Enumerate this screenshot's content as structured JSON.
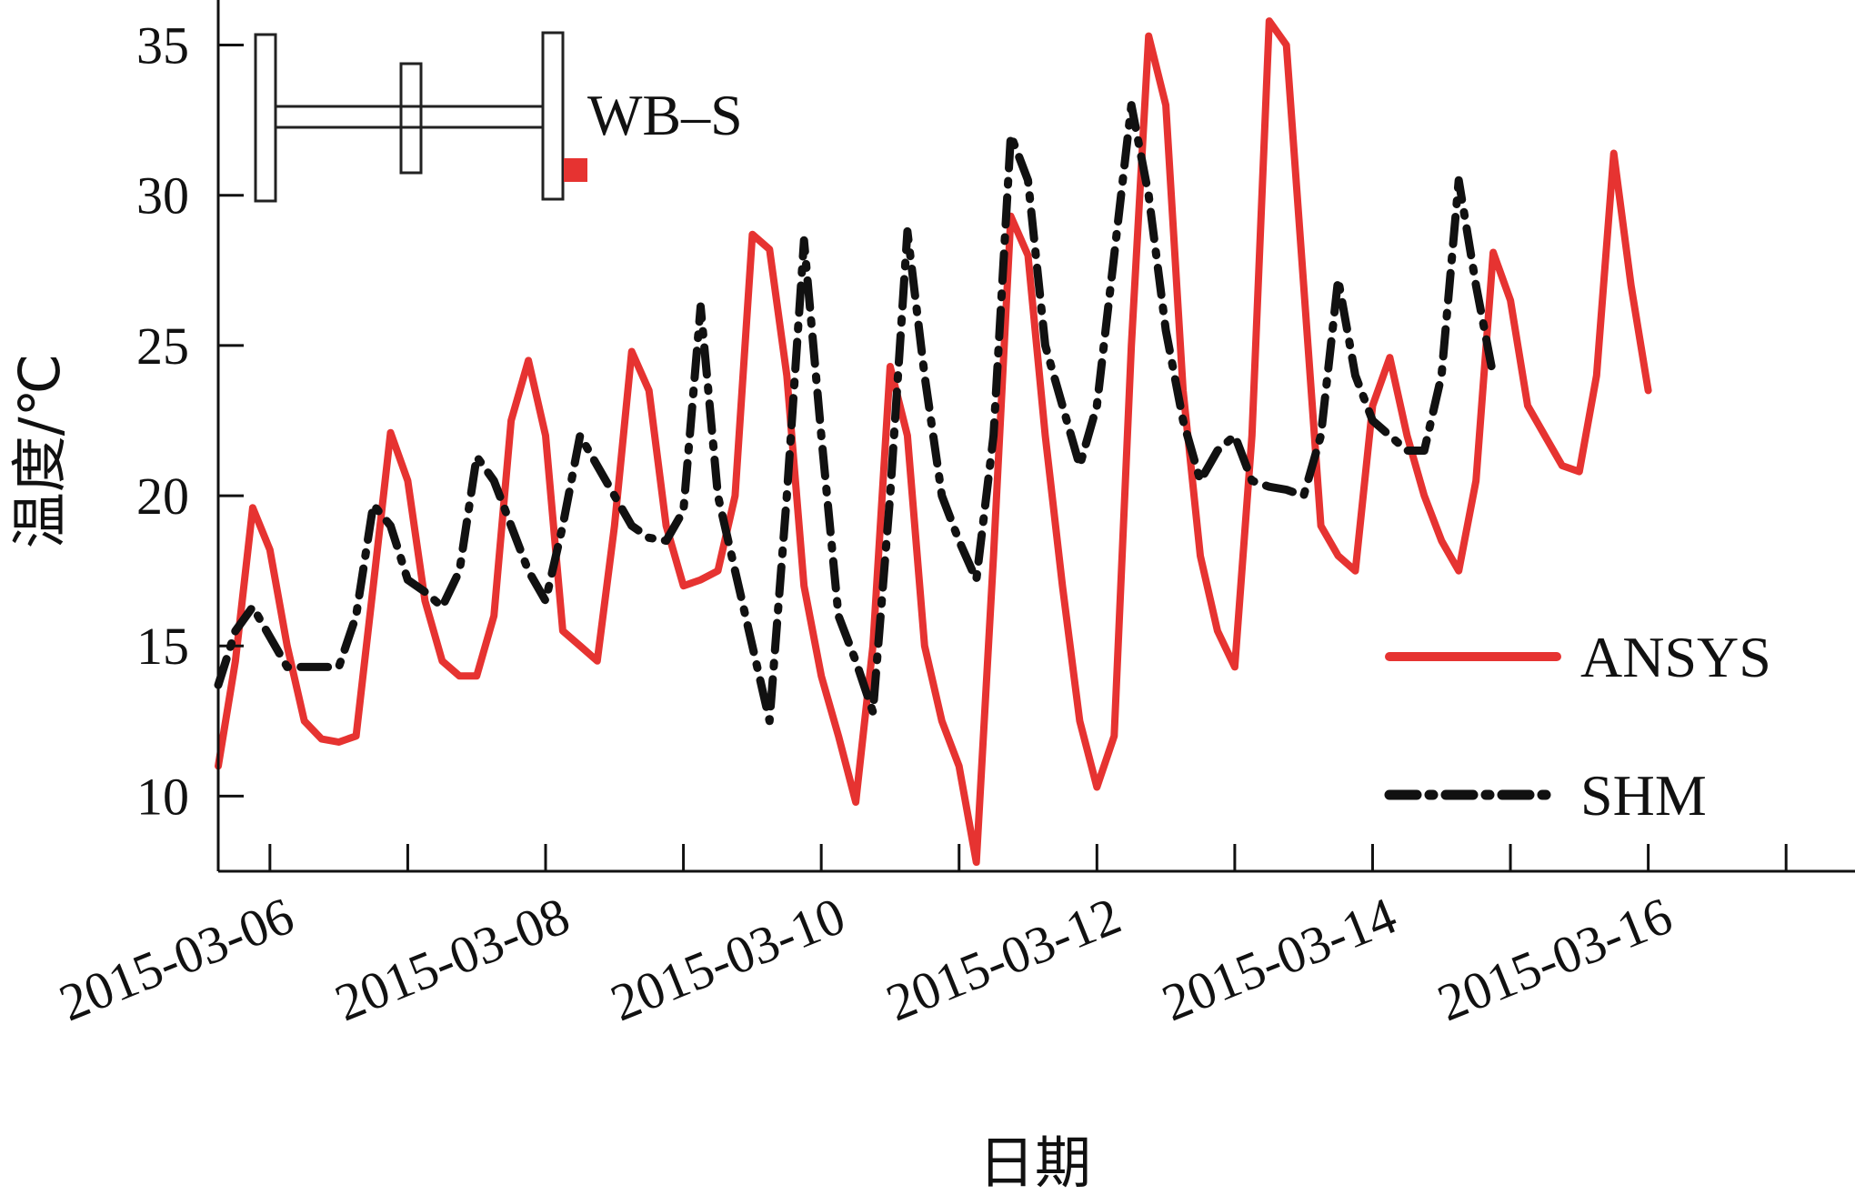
{
  "chart_data": {
    "type": "line",
    "title": "",
    "xlabel": "日期",
    "ylabel": "温度/℃",
    "x_axis": {
      "kind": "date",
      "range": [
        "2015-03-05 15:00",
        "2015-03-17 12:00"
      ],
      "tick_labels": [
        "2015-03-06",
        "2015-03-08",
        "2015-03-10",
        "2015-03-12",
        "2015-03-14",
        "2015-03-16"
      ]
    },
    "ylim": [
      7.5,
      36.5
    ],
    "y_ticks": [
      10,
      15,
      20,
      25,
      30,
      35
    ],
    "grid": false,
    "legend": {
      "position": "lower-right"
    },
    "inset": {
      "label": "WB–S",
      "marker_color": "#e63331"
    },
    "series": [
      {
        "name": "ANSYS",
        "color": "#e63331",
        "style": "solid",
        "points": [
          [
            "2015-03-05 15:00",
            11.0
          ],
          [
            "2015-03-05 18:00",
            14.5
          ],
          [
            "2015-03-05 21:00",
            19.6
          ],
          [
            "2015-03-06 00:00",
            18.2
          ],
          [
            "2015-03-06 03:00",
            15.0
          ],
          [
            "2015-03-06 06:00",
            12.5
          ],
          [
            "2015-03-06 09:00",
            11.9
          ],
          [
            "2015-03-06 12:00",
            11.8
          ],
          [
            "2015-03-06 15:00",
            12.0
          ],
          [
            "2015-03-06 18:00",
            17.0
          ],
          [
            "2015-03-06 21:00",
            22.1
          ],
          [
            "2015-03-07 00:00",
            20.5
          ],
          [
            "2015-03-07 03:00",
            16.5
          ],
          [
            "2015-03-07 06:00",
            14.5
          ],
          [
            "2015-03-07 09:00",
            14.0
          ],
          [
            "2015-03-07 12:00",
            14.0
          ],
          [
            "2015-03-07 15:00",
            16.0
          ],
          [
            "2015-03-07 18:00",
            22.5
          ],
          [
            "2015-03-07 21:00",
            24.5
          ],
          [
            "2015-03-08 00:00",
            22.0
          ],
          [
            "2015-03-08 03:00",
            15.5
          ],
          [
            "2015-03-08 06:00",
            15.0
          ],
          [
            "2015-03-08 09:00",
            14.5
          ],
          [
            "2015-03-08 12:00",
            19.0
          ],
          [
            "2015-03-08 15:00",
            24.8
          ],
          [
            "2015-03-08 18:00",
            23.5
          ],
          [
            "2015-03-08 21:00",
            19.0
          ],
          [
            "2015-03-09 00:00",
            17.0
          ],
          [
            "2015-03-09 03:00",
            17.2
          ],
          [
            "2015-03-09 06:00",
            17.5
          ],
          [
            "2015-03-09 09:00",
            20.0
          ],
          [
            "2015-03-09 12:00",
            28.7
          ],
          [
            "2015-03-09 15:00",
            28.2
          ],
          [
            "2015-03-09 18:00",
            24.0
          ],
          [
            "2015-03-09 21:00",
            17.0
          ],
          [
            "2015-03-10 00:00",
            14.0
          ],
          [
            "2015-03-10 03:00",
            12.0
          ],
          [
            "2015-03-10 06:00",
            9.8
          ],
          [
            "2015-03-10 09:00",
            15.0
          ],
          [
            "2015-03-10 12:00",
            24.3
          ],
          [
            "2015-03-10 15:00",
            22.0
          ],
          [
            "2015-03-10 18:00",
            15.0
          ],
          [
            "2015-03-10 21:00",
            12.5
          ],
          [
            "2015-03-11 00:00",
            11.0
          ],
          [
            "2015-03-11 03:00",
            7.8
          ],
          [
            "2015-03-11 06:00",
            18.0
          ],
          [
            "2015-03-11 09:00",
            29.3
          ],
          [
            "2015-03-11 12:00",
            28.0
          ],
          [
            "2015-03-11 15:00",
            22.0
          ],
          [
            "2015-03-11 18:00",
            17.0
          ],
          [
            "2015-03-11 21:00",
            12.5
          ],
          [
            "2015-03-12 00:00",
            10.3
          ],
          [
            "2015-03-12 03:00",
            12.0
          ],
          [
            "2015-03-12 06:00",
            25.0
          ],
          [
            "2015-03-12 09:00",
            35.3
          ],
          [
            "2015-03-12 12:00",
            33.0
          ],
          [
            "2015-03-12 15:00",
            23.5
          ],
          [
            "2015-03-12 18:00",
            18.0
          ],
          [
            "2015-03-12 21:00",
            15.5
          ],
          [
            "2015-03-13 00:00",
            14.3
          ],
          [
            "2015-03-13 03:00",
            22.0
          ],
          [
            "2015-03-13 06:00",
            35.8
          ],
          [
            "2015-03-13 09:00",
            35.0
          ],
          [
            "2015-03-13 12:00",
            27.0
          ],
          [
            "2015-03-13 15:00",
            19.0
          ],
          [
            "2015-03-13 18:00",
            18.0
          ],
          [
            "2015-03-13 21:00",
            17.5
          ],
          [
            "2015-03-14 00:00",
            23.0
          ],
          [
            "2015-03-14 03:00",
            24.6
          ],
          [
            "2015-03-14 06:00",
            22.0
          ],
          [
            "2015-03-14 09:00",
            20.0
          ],
          [
            "2015-03-14 12:00",
            18.5
          ],
          [
            "2015-03-14 15:00",
            17.5
          ],
          [
            "2015-03-14 18:00",
            20.5
          ],
          [
            "2015-03-14 21:00",
            28.1
          ],
          [
            "2015-03-15 00:00",
            26.5
          ],
          [
            "2015-03-15 03:00",
            23.0
          ],
          [
            "2015-03-15 06:00",
            22.0
          ],
          [
            "2015-03-15 09:00",
            21.0
          ],
          [
            "2015-03-15 12:00",
            20.8
          ],
          [
            "2015-03-15 15:00",
            24.0
          ],
          [
            "2015-03-15 18:00",
            31.4
          ],
          [
            "2015-03-15 21:00",
            27.0
          ],
          [
            "2015-03-16 00:00",
            23.5
          ]
        ]
      },
      {
        "name": "SHM",
        "color": "#111111",
        "style": "dash-dot",
        "points": [
          [
            "2015-03-05 15:00",
            13.7
          ],
          [
            "2015-03-05 18:00",
            15.5
          ],
          [
            "2015-03-05 21:00",
            16.3
          ],
          [
            "2015-03-06 00:00",
            15.3
          ],
          [
            "2015-03-06 03:00",
            14.3
          ],
          [
            "2015-03-06 06:00",
            14.3
          ],
          [
            "2015-03-06 09:00",
            14.3
          ],
          [
            "2015-03-06 12:00",
            14.3
          ],
          [
            "2015-03-06 15:00",
            16.0
          ],
          [
            "2015-03-06 18:00",
            19.7
          ],
          [
            "2015-03-06 21:00",
            19.0
          ],
          [
            "2015-03-07 00:00",
            17.2
          ],
          [
            "2015-03-07 03:00",
            16.8
          ],
          [
            "2015-03-07 06:00",
            16.3
          ],
          [
            "2015-03-07 09:00",
            17.5
          ],
          [
            "2015-03-07 12:00",
            21.3
          ],
          [
            "2015-03-07 15:00",
            20.5
          ],
          [
            "2015-03-07 18:00",
            19.0
          ],
          [
            "2015-03-07 21:00",
            17.5
          ],
          [
            "2015-03-08 00:00",
            16.5
          ],
          [
            "2015-03-08 03:00",
            19.0
          ],
          [
            "2015-03-08 06:00",
            22.0
          ],
          [
            "2015-03-08 09:00",
            21.0
          ],
          [
            "2015-03-08 12:00",
            20.0
          ],
          [
            "2015-03-08 15:00",
            19.0
          ],
          [
            "2015-03-08 18:00",
            18.6
          ],
          [
            "2015-03-08 21:00",
            18.5
          ],
          [
            "2015-03-09 00:00",
            19.5
          ],
          [
            "2015-03-09 03:00",
            26.3
          ],
          [
            "2015-03-09 06:00",
            20.0
          ],
          [
            "2015-03-09 09:00",
            17.5
          ],
          [
            "2015-03-09 12:00",
            15.0
          ],
          [
            "2015-03-09 15:00",
            12.5
          ],
          [
            "2015-03-09 18:00",
            20.0
          ],
          [
            "2015-03-09 21:00",
            28.5
          ],
          [
            "2015-03-10 00:00",
            22.0
          ],
          [
            "2015-03-10 03:00",
            16.0
          ],
          [
            "2015-03-10 06:00",
            14.5
          ],
          [
            "2015-03-10 09:00",
            12.8
          ],
          [
            "2015-03-10 12:00",
            20.0
          ],
          [
            "2015-03-10 15:00",
            28.8
          ],
          [
            "2015-03-10 18:00",
            24.0
          ],
          [
            "2015-03-10 21:00",
            20.0
          ],
          [
            "2015-03-11 00:00",
            18.5
          ],
          [
            "2015-03-11 03:00",
            17.2
          ],
          [
            "2015-03-11 06:00",
            22.0
          ],
          [
            "2015-03-11 09:00",
            32.0
          ],
          [
            "2015-03-11 12:00",
            30.5
          ],
          [
            "2015-03-11 15:00",
            25.0
          ],
          [
            "2015-03-11 18:00",
            23.0
          ],
          [
            "2015-03-11 21:00",
            21.0
          ],
          [
            "2015-03-12 00:00",
            23.0
          ],
          [
            "2015-03-12 03:00",
            28.0
          ],
          [
            "2015-03-12 06:00",
            33.0
          ],
          [
            "2015-03-12 09:00",
            30.0
          ],
          [
            "2015-03-12 12:00",
            25.5
          ],
          [
            "2015-03-12 15:00",
            22.5
          ],
          [
            "2015-03-12 18:00",
            20.5
          ],
          [
            "2015-03-12 21:00",
            21.5
          ],
          [
            "2015-03-13 00:00",
            22.0
          ],
          [
            "2015-03-13 03:00",
            20.5
          ],
          [
            "2015-03-13 06:00",
            20.3
          ],
          [
            "2015-03-13 09:00",
            20.2
          ],
          [
            "2015-03-13 12:00",
            20.0
          ],
          [
            "2015-03-13 15:00",
            22.0
          ],
          [
            "2015-03-13 18:00",
            27.2
          ],
          [
            "2015-03-13 21:00",
            24.0
          ],
          [
            "2015-03-14 00:00",
            22.5
          ],
          [
            "2015-03-14 03:00",
            22.0
          ],
          [
            "2015-03-14 06:00",
            21.5
          ],
          [
            "2015-03-14 09:00",
            21.5
          ],
          [
            "2015-03-14 12:00",
            24.0
          ],
          [
            "2015-03-14 15:00",
            30.5
          ],
          [
            "2015-03-14 18:00",
            27.0
          ],
          [
            "2015-03-14 21:00",
            24.0
          ]
        ]
      }
    ]
  }
}
